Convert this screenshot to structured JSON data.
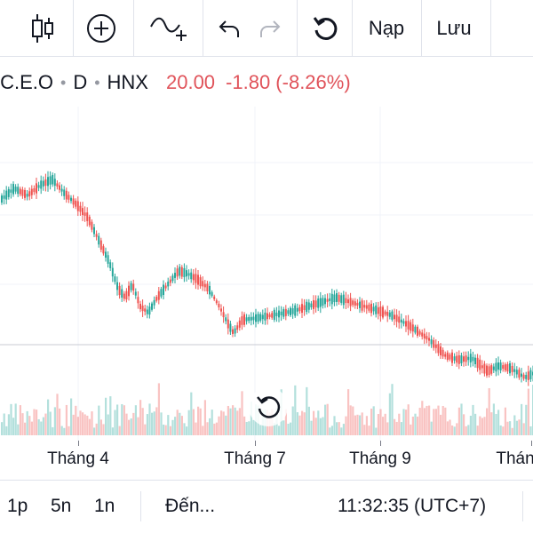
{
  "toolbar": {
    "icons": [
      "candlestick-icon",
      "plus-circle-icon",
      "indicators-icon",
      "undo-icon",
      "redo-icon",
      "reload-icon"
    ],
    "load_label": "Nạp",
    "save_label": "Lưu"
  },
  "symbol": {
    "name": ".C.E.O",
    "interval": "D",
    "exchange": "HNX",
    "price": "20.00",
    "change": "-1.80 (-8.26%)"
  },
  "colors": {
    "up": "#26a69a",
    "down": "#ef5350",
    "grid": "#f0f3fa"
  },
  "x_axis": {
    "labels": [
      {
        "text": "Tháng 4"
      },
      {
        "text": "Tháng 7"
      },
      {
        "text": "Tháng 9"
      },
      {
        "text": "Thán"
      }
    ]
  },
  "bottom_bar": {
    "range_1d": "1p",
    "range_5y": "5n",
    "range_1y": "1n",
    "goto": "Đến...",
    "time": "11:32:35 (UTC+7)"
  }
}
